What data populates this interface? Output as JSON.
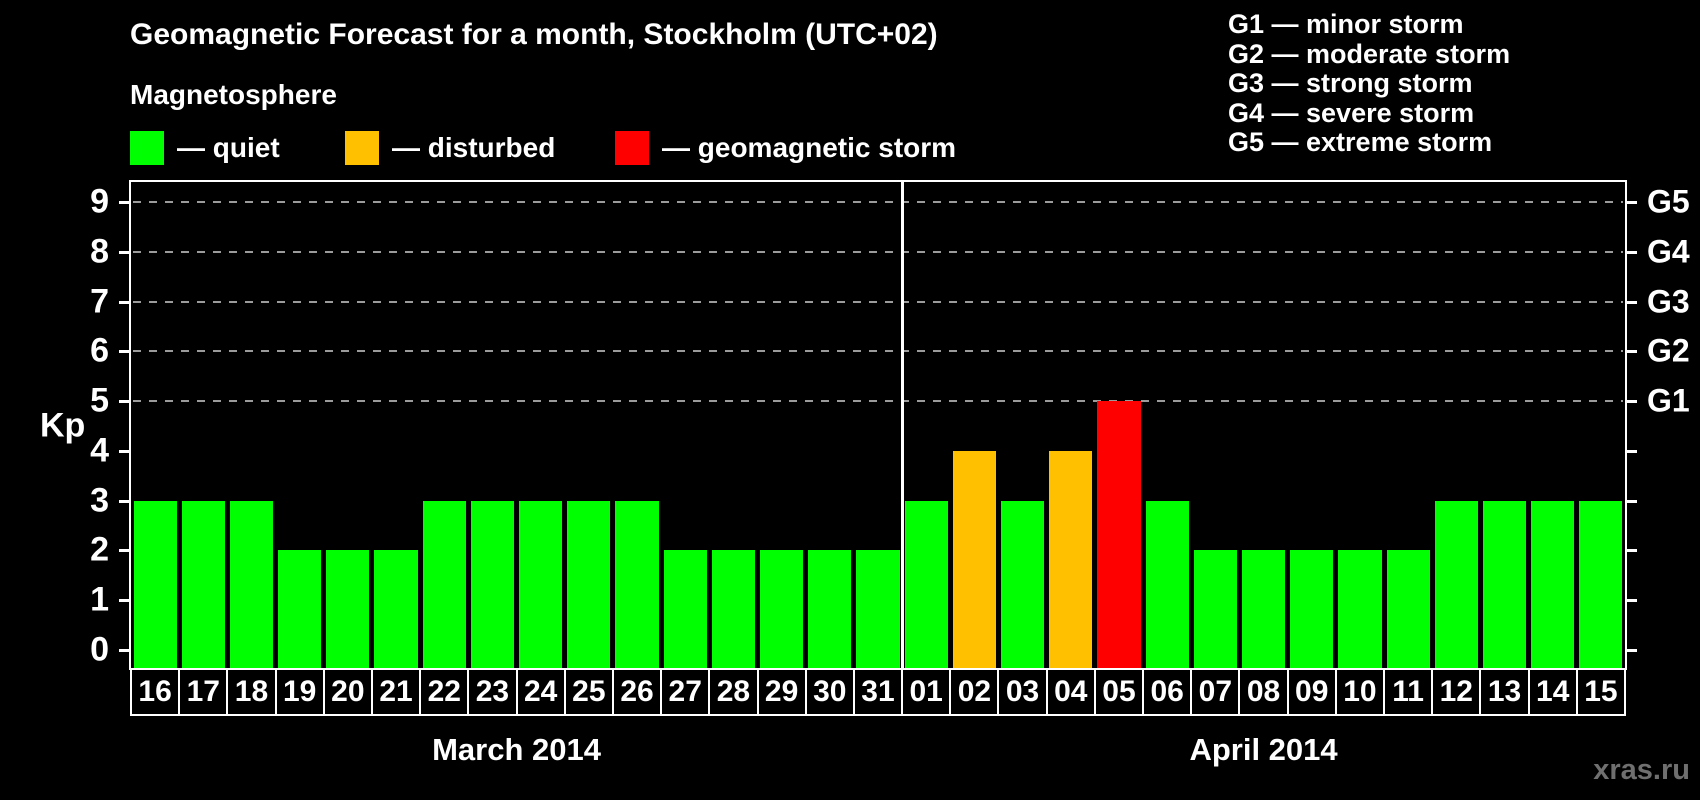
{
  "header": {
    "title": "Geomagnetic Forecast for a month, Stockholm (UTC+02)",
    "subtitle": "Magnetosphere"
  },
  "legend": {
    "items": [
      {
        "key": "quiet",
        "label": "— quiet",
        "color": "#00ff00"
      },
      {
        "key": "disturbed",
        "label": "— disturbed",
        "color": "#ffc000"
      },
      {
        "key": "storm",
        "label": "— geomagnetic storm",
        "color": "#ff0000"
      }
    ]
  },
  "g_legend": {
    "items": [
      "G1 — minor storm",
      "G2 — moderate storm",
      "G3 — strong storm",
      "G4 — severe storm",
      "G5 — extreme storm"
    ]
  },
  "axes": {
    "y_label": "Kp",
    "y_ticks": [
      0,
      1,
      2,
      3,
      4,
      5,
      6,
      7,
      8,
      9
    ],
    "right_labels": [
      {
        "kp": 5,
        "label": "G1"
      },
      {
        "kp": 6,
        "label": "G2"
      },
      {
        "kp": 7,
        "label": "G3"
      },
      {
        "kp": 8,
        "label": "G4"
      },
      {
        "kp": 9,
        "label": "G5"
      }
    ]
  },
  "footer": {
    "watermark": "xras.ru"
  },
  "chart_data": {
    "type": "bar",
    "title": "Geomagnetic Forecast for a month, Stockholm (UTC+02)",
    "ylabel": "Kp",
    "ylim": [
      0,
      9.4
    ],
    "grid": "dashed horizontal at Kp 5-9 only",
    "gridlines_at": [
      5,
      6,
      7,
      8,
      9
    ],
    "legend_position": "top",
    "status_colors": {
      "quiet": "#00ff00",
      "disturbed": "#ffc000",
      "storm": "#ff0000"
    },
    "months": [
      {
        "label": "March 2014",
        "days": 16
      },
      {
        "label": "April 2014",
        "days": 15
      }
    ],
    "days": [
      {
        "month": "March 2014",
        "day": "16",
        "kp": 3,
        "status": "quiet"
      },
      {
        "month": "March 2014",
        "day": "17",
        "kp": 3,
        "status": "quiet"
      },
      {
        "month": "March 2014",
        "day": "18",
        "kp": 3,
        "status": "quiet"
      },
      {
        "month": "March 2014",
        "day": "19",
        "kp": 2,
        "status": "quiet"
      },
      {
        "month": "March 2014",
        "day": "20",
        "kp": 2,
        "status": "quiet"
      },
      {
        "month": "March 2014",
        "day": "21",
        "kp": 2,
        "status": "quiet"
      },
      {
        "month": "March 2014",
        "day": "22",
        "kp": 3,
        "status": "quiet"
      },
      {
        "month": "March 2014",
        "day": "23",
        "kp": 3,
        "status": "quiet"
      },
      {
        "month": "March 2014",
        "day": "24",
        "kp": 3,
        "status": "quiet"
      },
      {
        "month": "March 2014",
        "day": "25",
        "kp": 3,
        "status": "quiet"
      },
      {
        "month": "March 2014",
        "day": "26",
        "kp": 3,
        "status": "quiet"
      },
      {
        "month": "March 2014",
        "day": "27",
        "kp": 2,
        "status": "quiet"
      },
      {
        "month": "March 2014",
        "day": "28",
        "kp": 2,
        "status": "quiet"
      },
      {
        "month": "March 2014",
        "day": "29",
        "kp": 2,
        "status": "quiet"
      },
      {
        "month": "March 2014",
        "day": "30",
        "kp": 2,
        "status": "quiet"
      },
      {
        "month": "March 2014",
        "day": "31",
        "kp": 2,
        "status": "quiet"
      },
      {
        "month": "April 2014",
        "day": "01",
        "kp": 3,
        "status": "quiet"
      },
      {
        "month": "April 2014",
        "day": "02",
        "kp": 4,
        "status": "disturbed"
      },
      {
        "month": "April 2014",
        "day": "03",
        "kp": 3,
        "status": "quiet"
      },
      {
        "month": "April 2014",
        "day": "04",
        "kp": 4,
        "status": "disturbed"
      },
      {
        "month": "April 2014",
        "day": "05",
        "kp": 5,
        "status": "storm"
      },
      {
        "month": "April 2014",
        "day": "06",
        "kp": 3,
        "status": "quiet"
      },
      {
        "month": "April 2014",
        "day": "07",
        "kp": 2,
        "status": "quiet"
      },
      {
        "month": "April 2014",
        "day": "08",
        "kp": 2,
        "status": "quiet"
      },
      {
        "month": "April 2014",
        "day": "09",
        "kp": 2,
        "status": "quiet"
      },
      {
        "month": "April 2014",
        "day": "10",
        "kp": 2,
        "status": "quiet"
      },
      {
        "month": "April 2014",
        "day": "11",
        "kp": 2,
        "status": "quiet"
      },
      {
        "month": "April 2014",
        "day": "12",
        "kp": 3,
        "status": "quiet"
      },
      {
        "month": "April 2014",
        "day": "13",
        "kp": 3,
        "status": "quiet"
      },
      {
        "month": "April 2014",
        "day": "14",
        "kp": 3,
        "status": "quiet"
      },
      {
        "month": "April 2014",
        "day": "15",
        "kp": 3,
        "status": "quiet"
      }
    ]
  }
}
